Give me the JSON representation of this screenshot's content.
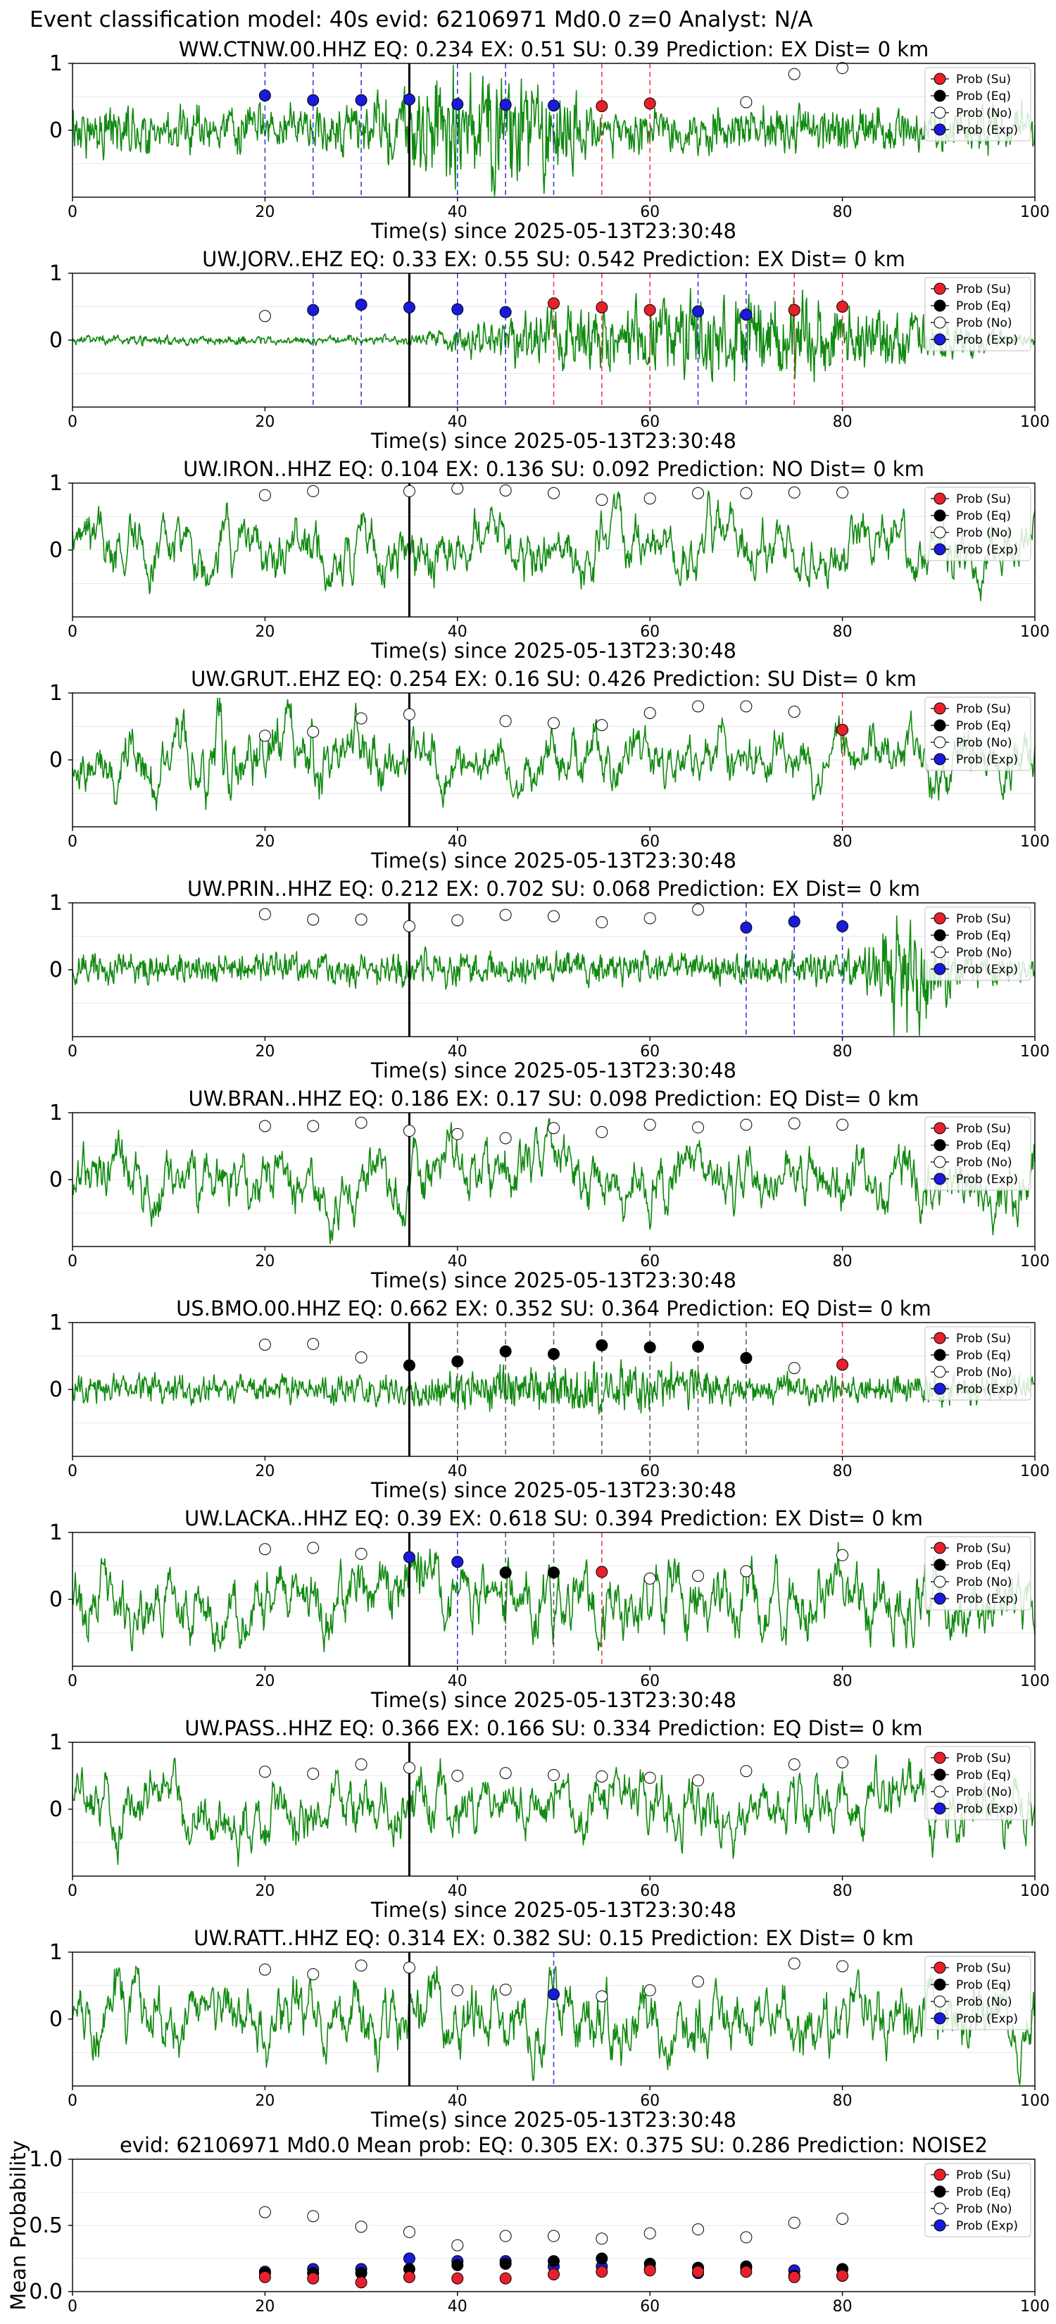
{
  "suptitle": "Event classification model: 40s evid: 62106971 Md0.0 z=0 Analyst: N/A",
  "colors": {
    "waveform": "#118a11",
    "su": "#e8202a",
    "eq": "#000000",
    "no": "#ffffff",
    "exp": "#1a1adb",
    "origin_line": "#000000"
  },
  "legend_labels": [
    "Prob (Su)",
    "Prob (Eq)",
    "Prob (No)",
    "Prob (Exp)"
  ],
  "chart_data": [
    {
      "type": "line",
      "title": "WW.CTNW.00.HHZ   EQ: 0.234   EX: 0.51   SU: 0.39   Prediction: EX    Dist= 0 km",
      "xlabel": "Time(s) since 2025-05-13T23:30:48",
      "xlim": [
        0,
        100
      ],
      "ylim": [
        -1,
        1
      ],
      "xticks": [
        0,
        20,
        40,
        60,
        80,
        100
      ],
      "yticks": [
        0,
        1
      ],
      "origin_time": 35,
      "grid": true,
      "legend": "upper right",
      "waveform": {
        "amplitude": 0.26,
        "burst_start": 30,
        "burst_end": 55,
        "burst_gain": 2.6
      },
      "markers": [
        {
          "t": 20,
          "p": 0.52,
          "class": "Exp"
        },
        {
          "t": 25,
          "p": 0.45,
          "class": "Exp"
        },
        {
          "t": 30,
          "p": 0.45,
          "class": "Exp"
        },
        {
          "t": 35,
          "p": 0.46,
          "class": "Exp"
        },
        {
          "t": 40,
          "p": 0.39,
          "class": "Exp"
        },
        {
          "t": 45,
          "p": 0.38,
          "class": "Exp"
        },
        {
          "t": 50,
          "p": 0.37,
          "class": "Exp"
        },
        {
          "t": 55,
          "p": 0.36,
          "class": "Su"
        },
        {
          "t": 60,
          "p": 0.4,
          "class": "Su"
        },
        {
          "t": 70,
          "p": 0.42,
          "class": "No"
        },
        {
          "t": 75,
          "p": 0.84,
          "class": "No"
        },
        {
          "t": 80,
          "p": 0.93,
          "class": "No"
        }
      ]
    },
    {
      "type": "line",
      "title": "UW.JORV..EHZ   EQ: 0.33  EX: 0.55  SU: 0.542   Prediction: EX    Dist= 0 km",
      "xlabel": "Time(s) since 2025-05-13T23:30:48",
      "xlim": [
        0,
        100
      ],
      "ylim": [
        -1,
        1
      ],
      "xticks": [
        0,
        20,
        40,
        60,
        80,
        100
      ],
      "yticks": [
        0,
        1
      ],
      "origin_time": 35,
      "grid": true,
      "legend": "upper right",
      "waveform": {
        "amplitude": 0.05,
        "burst_start": 35,
        "burst_end": 100,
        "burst_gain": 9
      },
      "markers": [
        {
          "t": 20,
          "p": 0.36,
          "class": "No"
        },
        {
          "t": 25,
          "p": 0.45,
          "class": "Exp"
        },
        {
          "t": 30,
          "p": 0.53,
          "class": "Exp"
        },
        {
          "t": 35,
          "p": 0.49,
          "class": "Exp"
        },
        {
          "t": 40,
          "p": 0.46,
          "class": "Exp"
        },
        {
          "t": 45,
          "p": 0.42,
          "class": "Exp"
        },
        {
          "t": 50,
          "p": 0.55,
          "class": "Su"
        },
        {
          "t": 55,
          "p": 0.49,
          "class": "Su"
        },
        {
          "t": 60,
          "p": 0.45,
          "class": "Su"
        },
        {
          "t": 65,
          "p": 0.43,
          "class": "Exp"
        },
        {
          "t": 70,
          "p": 0.38,
          "class": "Exp"
        },
        {
          "t": 75,
          "p": 0.45,
          "class": "Su"
        },
        {
          "t": 80,
          "p": 0.5,
          "class": "Su"
        }
      ]
    },
    {
      "type": "line",
      "title": "UW.IRON..HHZ   EQ: 0.104  EX: 0.136  SU: 0.092   Prediction: NO    Dist= 0 km",
      "xlabel": "Time(s) since 2025-05-13T23:30:48",
      "xlim": [
        0,
        100
      ],
      "ylim": [
        -1,
        1
      ],
      "xticks": [
        0,
        20,
        40,
        60,
        80,
        100
      ],
      "yticks": [
        0,
        1
      ],
      "origin_time": 35,
      "grid": true,
      "legend": "upper right",
      "waveform": {
        "amplitude": 0.55,
        "burst_start": 0,
        "burst_end": 0,
        "burst_gain": 1
      },
      "markers": [
        {
          "t": 20,
          "p": 0.82,
          "class": "No"
        },
        {
          "t": 25,
          "p": 0.88,
          "class": "No"
        },
        {
          "t": 35,
          "p": 0.88,
          "class": "No"
        },
        {
          "t": 40,
          "p": 0.92,
          "class": "No"
        },
        {
          "t": 45,
          "p": 0.89,
          "class": "No"
        },
        {
          "t": 50,
          "p": 0.85,
          "class": "No"
        },
        {
          "t": 55,
          "p": 0.75,
          "class": "No"
        },
        {
          "t": 60,
          "p": 0.77,
          "class": "No"
        },
        {
          "t": 65,
          "p": 0.85,
          "class": "No"
        },
        {
          "t": 70,
          "p": 0.85,
          "class": "No"
        },
        {
          "t": 75,
          "p": 0.86,
          "class": "No"
        },
        {
          "t": 80,
          "p": 0.86,
          "class": "No"
        }
      ]
    },
    {
      "type": "line",
      "title": "UW.GRUT..EHZ   EQ: 0.254   EX: 0.16   SU: 0.426    Prediction: SU    Dist= 0 km",
      "xlabel": "Time(s) since 2025-05-13T23:30:48",
      "xlim": [
        0,
        100
      ],
      "ylim": [
        -1,
        1
      ],
      "xticks": [
        0,
        20,
        40,
        60,
        80,
        100
      ],
      "yticks": [
        0,
        1
      ],
      "origin_time": 35,
      "grid": true,
      "legend": "upper right",
      "waveform": {
        "amplitude": 0.5,
        "burst_start": 0,
        "burst_end": 35,
        "burst_gain": 1.4
      },
      "markers": [
        {
          "t": 20,
          "p": 0.36,
          "class": "No"
        },
        {
          "t": 25,
          "p": 0.42,
          "class": "No"
        },
        {
          "t": 30,
          "p": 0.62,
          "class": "No"
        },
        {
          "t": 35,
          "p": 0.68,
          "class": "No"
        },
        {
          "t": 45,
          "p": 0.58,
          "class": "No"
        },
        {
          "t": 50,
          "p": 0.55,
          "class": "No"
        },
        {
          "t": 55,
          "p": 0.52,
          "class": "No"
        },
        {
          "t": 60,
          "p": 0.7,
          "class": "No"
        },
        {
          "t": 65,
          "p": 0.8,
          "class": "No"
        },
        {
          "t": 70,
          "p": 0.8,
          "class": "No"
        },
        {
          "t": 75,
          "p": 0.72,
          "class": "No"
        },
        {
          "t": 80,
          "p": 0.45,
          "class": "Su"
        }
      ]
    },
    {
      "type": "line",
      "title": "UW.PRIN..HHZ   EQ: 0.212  EX: 0.702  SU: 0.068   Prediction: EX    Dist= 0 km",
      "xlabel": "Time(s) since 2025-05-13T23:30:48",
      "xlim": [
        0,
        100
      ],
      "ylim": [
        -1,
        1
      ],
      "xticks": [
        0,
        20,
        40,
        60,
        80,
        100
      ],
      "yticks": [
        0,
        1
      ],
      "origin_time": 35,
      "grid": true,
      "legend": "upper right",
      "waveform": {
        "amplitude": 0.18,
        "burst_start": 82,
        "burst_end": 92,
        "burst_gain": 4
      },
      "markers": [
        {
          "t": 20,
          "p": 0.83,
          "class": "No"
        },
        {
          "t": 25,
          "p": 0.75,
          "class": "No"
        },
        {
          "t": 30,
          "p": 0.75,
          "class": "No"
        },
        {
          "t": 35,
          "p": 0.65,
          "class": "No"
        },
        {
          "t": 40,
          "p": 0.74,
          "class": "No"
        },
        {
          "t": 45,
          "p": 0.82,
          "class": "No"
        },
        {
          "t": 50,
          "p": 0.8,
          "class": "No"
        },
        {
          "t": 55,
          "p": 0.71,
          "class": "No"
        },
        {
          "t": 60,
          "p": 0.77,
          "class": "No"
        },
        {
          "t": 65,
          "p": 0.9,
          "class": "No"
        },
        {
          "t": 70,
          "p": 0.63,
          "class": "Exp"
        },
        {
          "t": 75,
          "p": 0.72,
          "class": "Exp"
        },
        {
          "t": 80,
          "p": 0.65,
          "class": "Exp"
        }
      ]
    },
    {
      "type": "line",
      "title": "UW.BRAN..HHZ   EQ: 0.186  EX: 0.17   SU: 0.098   Prediction: EQ    Dist= 0 km",
      "xlabel": "Time(s) since 2025-05-13T23:30:48",
      "xlim": [
        0,
        100
      ],
      "ylim": [
        -1,
        1
      ],
      "xticks": [
        0,
        20,
        40,
        60,
        80,
        100
      ],
      "yticks": [
        0,
        1
      ],
      "origin_time": 35,
      "grid": true,
      "legend": "upper right",
      "waveform": {
        "amplitude": 0.55,
        "burst_start": 0,
        "burst_end": 0,
        "burst_gain": 1
      },
      "markers": [
        {
          "t": 20,
          "p": 0.8,
          "class": "No"
        },
        {
          "t": 25,
          "p": 0.8,
          "class": "No"
        },
        {
          "t": 30,
          "p": 0.85,
          "class": "No"
        },
        {
          "t": 35,
          "p": 0.73,
          "class": "No"
        },
        {
          "t": 40,
          "p": 0.68,
          "class": "No"
        },
        {
          "t": 45,
          "p": 0.62,
          "class": "No"
        },
        {
          "t": 50,
          "p": 0.77,
          "class": "No"
        },
        {
          "t": 55,
          "p": 0.71,
          "class": "No"
        },
        {
          "t": 60,
          "p": 0.82,
          "class": "No"
        },
        {
          "t": 65,
          "p": 0.78,
          "class": "No"
        },
        {
          "t": 70,
          "p": 0.82,
          "class": "No"
        },
        {
          "t": 75,
          "p": 0.84,
          "class": "No"
        },
        {
          "t": 80,
          "p": 0.82,
          "class": "No"
        }
      ]
    },
    {
      "type": "line",
      "title": "US.BMO.00.HHZ   EQ: 0.662  EX: 0.352  SU: 0.364   Prediction: EQ    Dist= 0 km",
      "xlabel": "Time(s) since 2025-05-13T23:30:48",
      "xlim": [
        0,
        100
      ],
      "ylim": [
        -1,
        1
      ],
      "xticks": [
        0,
        20,
        40,
        60,
        80,
        100
      ],
      "yticks": [
        0,
        1
      ],
      "origin_time": 35,
      "grid": true,
      "legend": "upper right",
      "waveform": {
        "amplitude": 0.16,
        "burst_start": 35,
        "burst_end": 70,
        "burst_gain": 1.8
      },
      "markers": [
        {
          "t": 20,
          "p": 0.67,
          "class": "No"
        },
        {
          "t": 25,
          "p": 0.68,
          "class": "No"
        },
        {
          "t": 30,
          "p": 0.48,
          "class": "No"
        },
        {
          "t": 35,
          "p": 0.36,
          "class": "Eq"
        },
        {
          "t": 40,
          "p": 0.42,
          "class": "Eq"
        },
        {
          "t": 45,
          "p": 0.57,
          "class": "Eq"
        },
        {
          "t": 50,
          "p": 0.53,
          "class": "Eq"
        },
        {
          "t": 55,
          "p": 0.66,
          "class": "Eq"
        },
        {
          "t": 60,
          "p": 0.63,
          "class": "Eq"
        },
        {
          "t": 65,
          "p": 0.64,
          "class": "Eq"
        },
        {
          "t": 70,
          "p": 0.47,
          "class": "Eq"
        },
        {
          "t": 75,
          "p": 0.32,
          "class": "No"
        },
        {
          "t": 80,
          "p": 0.37,
          "class": "Su"
        }
      ]
    },
    {
      "type": "line",
      "title": "UW.LACKA..HHZ   EQ: 0.39  EX: 0.618  SU: 0.394   Prediction: EX    Dist= 0 km",
      "xlabel": "Time(s) since 2025-05-13T23:30:48",
      "xlim": [
        0,
        100
      ],
      "ylim": [
        -1,
        1
      ],
      "xticks": [
        0,
        20,
        40,
        60,
        80,
        100
      ],
      "yticks": [
        0,
        1
      ],
      "origin_time": 35,
      "grid": true,
      "legend": "upper right",
      "waveform": {
        "amplitude": 0.65,
        "burst_start": 0,
        "burst_end": 0,
        "burst_gain": 1
      },
      "markers": [
        {
          "t": 20,
          "p": 0.75,
          "class": "No"
        },
        {
          "t": 25,
          "p": 0.77,
          "class": "No"
        },
        {
          "t": 30,
          "p": 0.68,
          "class": "No"
        },
        {
          "t": 35,
          "p": 0.63,
          "class": "Exp"
        },
        {
          "t": 40,
          "p": 0.56,
          "class": "Exp"
        },
        {
          "t": 45,
          "p": 0.4,
          "class": "Eq"
        },
        {
          "t": 50,
          "p": 0.4,
          "class": "Eq"
        },
        {
          "t": 55,
          "p": 0.41,
          "class": "Su"
        },
        {
          "t": 60,
          "p": 0.31,
          "class": "No"
        },
        {
          "t": 65,
          "p": 0.35,
          "class": "No"
        },
        {
          "t": 70,
          "p": 0.42,
          "class": "No"
        },
        {
          "t": 80,
          "p": 0.66,
          "class": "No"
        }
      ]
    },
    {
      "type": "line",
      "title": "UW.PASS..HHZ   EQ: 0.366  EX: 0.166  SU: 0.334   Prediction: EQ    Dist= 0 km",
      "xlabel": "Time(s) since 2025-05-13T23:30:48",
      "xlim": [
        0,
        100
      ],
      "ylim": [
        -1,
        1
      ],
      "xticks": [
        0,
        20,
        40,
        60,
        80,
        100
      ],
      "yticks": [
        0,
        1
      ],
      "origin_time": 35,
      "grid": true,
      "legend": "upper right",
      "waveform": {
        "amplitude": 0.6,
        "burst_start": 0,
        "burst_end": 0,
        "burst_gain": 1
      },
      "markers": [
        {
          "t": 20,
          "p": 0.56,
          "class": "No"
        },
        {
          "t": 25,
          "p": 0.53,
          "class": "No"
        },
        {
          "t": 30,
          "p": 0.67,
          "class": "No"
        },
        {
          "t": 35,
          "p": 0.62,
          "class": "No"
        },
        {
          "t": 40,
          "p": 0.5,
          "class": "No"
        },
        {
          "t": 45,
          "p": 0.54,
          "class": "No"
        },
        {
          "t": 50,
          "p": 0.51,
          "class": "No"
        },
        {
          "t": 55,
          "p": 0.49,
          "class": "No"
        },
        {
          "t": 60,
          "p": 0.47,
          "class": "No"
        },
        {
          "t": 65,
          "p": 0.43,
          "class": "No"
        },
        {
          "t": 70,
          "p": 0.57,
          "class": "No"
        },
        {
          "t": 75,
          "p": 0.67,
          "class": "No"
        },
        {
          "t": 80,
          "p": 0.7,
          "class": "No"
        }
      ]
    },
    {
      "type": "line",
      "title": "UW.RATT..HHZ   EQ: 0.314  EX: 0.382  SU: 0.15   Prediction: EX    Dist= 0 km",
      "xlabel": "Time(s) since 2025-05-13T23:30:48",
      "xlim": [
        0,
        100
      ],
      "ylim": [
        -1,
        1
      ],
      "xticks": [
        0,
        20,
        40,
        60,
        80,
        100
      ],
      "yticks": [
        0,
        1
      ],
      "origin_time": 35,
      "grid": true,
      "legend": "upper right",
      "waveform": {
        "amplitude": 0.65,
        "burst_start": 0,
        "burst_end": 0,
        "burst_gain": 1
      },
      "markers": [
        {
          "t": 20,
          "p": 0.74,
          "class": "No"
        },
        {
          "t": 25,
          "p": 0.67,
          "class": "No"
        },
        {
          "t": 30,
          "p": 0.8,
          "class": "No"
        },
        {
          "t": 35,
          "p": 0.77,
          "class": "No"
        },
        {
          "t": 40,
          "p": 0.43,
          "class": "No"
        },
        {
          "t": 45,
          "p": 0.44,
          "class": "No"
        },
        {
          "t": 50,
          "p": 0.37,
          "class": "Exp"
        },
        {
          "t": 55,
          "p": 0.34,
          "class": "No"
        },
        {
          "t": 60,
          "p": 0.43,
          "class": "No"
        },
        {
          "t": 65,
          "p": 0.56,
          "class": "No"
        },
        {
          "t": 75,
          "p": 0.83,
          "class": "No"
        },
        {
          "t": 80,
          "p": 0.79,
          "class": "No"
        }
      ]
    },
    {
      "type": "scatter",
      "title": "evid: 62106971   Md0.0    Mean prob:    EQ: 0.305   EX: 0.375   SU: 0.286    Prediction: NOISE2",
      "xlabel": "",
      "ylabel": "Mean Probability",
      "xlim": [
        0,
        100
      ],
      "ylim": [
        0,
        1
      ],
      "xticks": [
        0,
        20,
        40,
        60,
        80,
        100
      ],
      "yticks": [
        0.0,
        0.5,
        1.0
      ],
      "ytick_labels": [
        "0.0",
        "0.5",
        "1.0"
      ],
      "grid": true,
      "legend": "upper right",
      "x": [
        20,
        25,
        30,
        35,
        40,
        45,
        50,
        55,
        60,
        65,
        70,
        75,
        80
      ],
      "series": [
        {
          "name": "Prob (No)",
          "values": [
            0.6,
            0.57,
            0.49,
            0.45,
            0.35,
            0.42,
            0.42,
            0.4,
            0.44,
            0.47,
            0.41,
            0.52,
            0.55
          ]
        },
        {
          "name": "Prob (Exp)",
          "values": [
            0.15,
            0.17,
            0.17,
            0.25,
            0.23,
            0.23,
            0.19,
            0.19,
            0.17,
            0.14,
            0.18,
            0.16,
            0.12
          ]
        },
        {
          "name": "Prob (Eq)",
          "values": [
            0.14,
            0.14,
            0.14,
            0.17,
            0.2,
            0.21,
            0.23,
            0.25,
            0.21,
            0.18,
            0.19,
            0.12,
            0.17
          ]
        },
        {
          "name": "Prob (Su)",
          "values": [
            0.11,
            0.1,
            0.07,
            0.11,
            0.1,
            0.1,
            0.13,
            0.15,
            0.16,
            0.15,
            0.15,
            0.11,
            0.12
          ]
        }
      ]
    }
  ]
}
